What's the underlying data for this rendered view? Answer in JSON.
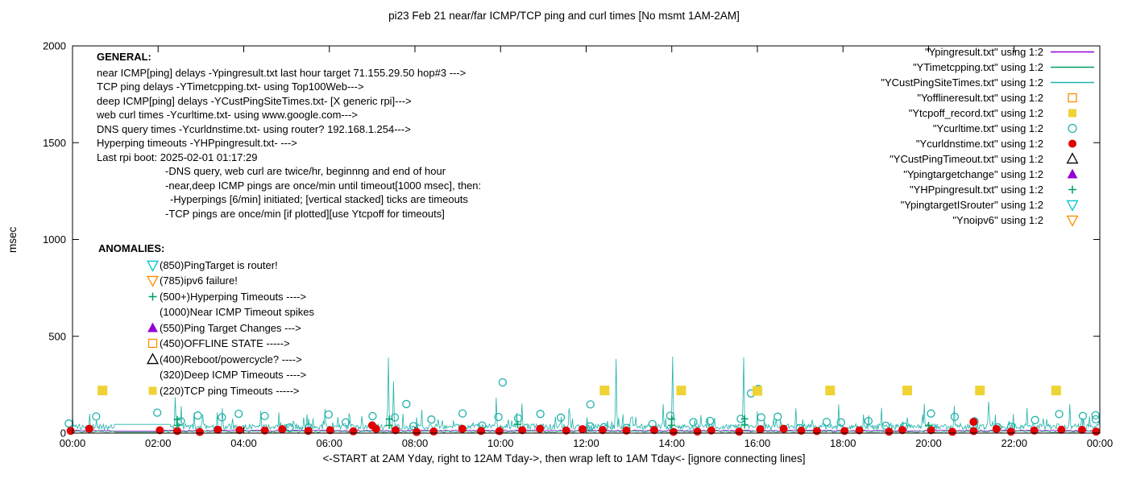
{
  "title": "pi23 Feb 21  near/far ICMP/TCP ping and curl times [No msmt 1AM-2AM]",
  "axes": {
    "ylabel": "msec",
    "xlabel": "<-START at 2AM Yday, right to 12AM Tday->, then wrap left to 1AM Tday<- [ignore connecting lines]"
  },
  "general": {
    "heading": "GENERAL:",
    "lines": [
      {
        "indent": 0,
        "text": "near ICMP[ping] delays -Ypingresult.txt last hour target 71.155.29.50 hop#3 --->"
      },
      {
        "indent": 0,
        "text": "TCP ping delays -YTimetcpping.txt- using Top100Web--->"
      },
      {
        "indent": 0,
        "text": "deep ICMP[ping] delays -YCustPingSiteTimes.txt- [X generic rpi]--->"
      },
      {
        "indent": 0,
        "text": "web curl times -Ycurltime.txt- using www.google.com--->"
      },
      {
        "indent": 0,
        "text": "DNS query times -Ycurldnstime.txt- using router? 192.168.1.254--->"
      },
      {
        "indent": 0,
        "text": "Hyperping timeouts -YHPpingresult.txt- --->"
      },
      {
        "indent": 0,
        "text": "Last rpi boot: 2025-02-01 01:17:29"
      },
      {
        "indent": 1,
        "text": "-DNS query, web curl are twice/hr, beginnng and end of hour"
      },
      {
        "indent": 1,
        "text": "-near,deep ICMP pings are once/min until timeout[1000 msec], then:"
      },
      {
        "indent": 2,
        "text": "-Hyperpings [6/min] initiated; [vertical stacked] ticks are timeouts"
      },
      {
        "indent": 1,
        "text": "-TCP pings are once/min [if plotted][use Ytcpoff for timeouts]"
      }
    ]
  },
  "anomalies": {
    "heading": "ANOMALIES:",
    "items": [
      {
        "marker": "triangle-down-open",
        "color": "#00C5CD",
        "text": "(850)PingTarget is router!"
      },
      {
        "marker": "triangle-down-open",
        "color": "#FF8C00",
        "text": "(785)ipv6 failure!"
      },
      {
        "marker": "plus",
        "color": "#00A060",
        "text": "(500+)Hyperping Timeouts ---->"
      },
      {
        "marker": "none",
        "color": "",
        "text": "(1000)Near ICMP Timeout spikes"
      },
      {
        "marker": "triangle-filled",
        "color": "#9400D3",
        "text": "(550)Ping Target Changes --->"
      },
      {
        "marker": "square-open",
        "color": "#FF8C00",
        "text": "(450)OFFLINE STATE ----->"
      },
      {
        "marker": "triangle-open",
        "color": "#000000",
        "text": "(400)Reboot/powercycle? ---->"
      },
      {
        "marker": "none",
        "color": "",
        "text": "(320)Deep ICMP Timeouts ---->"
      },
      {
        "marker": "square-filled",
        "color": "#EFD334",
        "text": "(220)TCP ping Timeouts ----->"
      }
    ]
  },
  "legend": [
    {
      "marker": "line",
      "color": "#9400D3",
      "label": "\"Ypingresult.txt\" using 1:2"
    },
    {
      "marker": "line",
      "color": "#00A060",
      "label": "\"YTimetcpping.txt\" using 1:2"
    },
    {
      "marker": "line",
      "color": "#20B2AA",
      "label": "\"YCustPingSiteTimes.txt\" using 1:2"
    },
    {
      "marker": "square-open",
      "color": "#FF8C00",
      "label": "\"Yofflineresult.txt\" using 1:2"
    },
    {
      "marker": "square-filled",
      "color": "#EFD334",
      "label": "\"Ytcpoff_record.txt\" using 1:2"
    },
    {
      "marker": "circle-open",
      "color": "#20B2AA",
      "label": "\"Ycurltime.txt\" using 1:2"
    },
    {
      "marker": "circle-filled",
      "color": "#E00000",
      "label": "\"Ycurldnstime.txt\" using 1:2"
    },
    {
      "marker": "triangle-open",
      "color": "#000000",
      "label": "\"YCustPingTimeout.txt\" using 1:2"
    },
    {
      "marker": "triangle-filled",
      "color": "#9400D3",
      "label": "\"Ypingtargetchange\" using 1:2"
    },
    {
      "marker": "plus",
      "color": "#00A060",
      "label": "\"YHPpingresult.txt\" using 1:2"
    },
    {
      "marker": "triangle-down-open",
      "color": "#00C5CD",
      "label": "\"YpingtargetISrouter\" using 1:2"
    },
    {
      "marker": "triangle-down-open",
      "color": "#FF8C00",
      "label": "\"Ynoipv6\" using 1:2"
    }
  ],
  "chart_data": {
    "type": "line",
    "title": "pi23 Feb 21  near/far ICMP/TCP ping and curl times [No msmt 1AM-2AM]",
    "ylabel": "msec",
    "ylim": [
      0,
      2000
    ],
    "yticks": [
      0,
      500,
      1000,
      1500,
      2000
    ],
    "xlim_hours": [
      0,
      24
    ],
    "xtick_labels": [
      "00:00",
      "02:00",
      "04:00",
      "06:00",
      "08:00",
      "10:00",
      "12:00",
      "14:00",
      "16:00",
      "18:00",
      "20:00",
      "22:00",
      "00:00"
    ],
    "noise_seed": 7,
    "no_measurement_gap_hours": [
      1,
      2
    ],
    "series": [
      {
        "name": "near-icmp-ping",
        "style": "line",
        "color": "#9400D3",
        "baseline": 10,
        "noise": 6,
        "sample_step_hours": 0.04,
        "gap_hours": [
          1,
          2
        ],
        "gap_value": 10,
        "spikes": []
      },
      {
        "name": "tcp-ping",
        "style": "line",
        "color": "#00A060",
        "baseline": 4,
        "noise": 8,
        "sample_step_hours": 0.04,
        "gap_hours": [
          1,
          2
        ],
        "gap_value": 5,
        "spikes": []
      },
      {
        "name": "deep-icmp-ping",
        "style": "line",
        "color": "#20B2AA",
        "baseline": 18,
        "noise": 30,
        "spike_chance": 0.08,
        "spike_extra": 70,
        "sample_step_hours": 0.02,
        "gap_hours": [
          1,
          2.3
        ],
        "gap_value": 45,
        "spikes": [
          [
            0.4,
            100
          ],
          [
            2.4,
            185
          ],
          [
            2.55,
            140
          ],
          [
            3.5,
            130
          ],
          [
            4.4,
            115
          ],
          [
            5.9,
            125
          ],
          [
            7.38,
            390
          ],
          [
            7.5,
            268
          ],
          [
            8.15,
            120
          ],
          [
            9.9,
            182
          ],
          [
            10.5,
            152
          ],
          [
            11.6,
            128
          ],
          [
            12.7,
            383
          ],
          [
            13.8,
            150
          ],
          [
            14.02,
            395
          ],
          [
            15.68,
            392
          ],
          [
            16.9,
            128
          ],
          [
            17.9,
            148
          ],
          [
            18.9,
            130
          ],
          [
            19.9,
            152
          ],
          [
            20.6,
            140
          ],
          [
            21.4,
            162
          ],
          [
            22.3,
            130
          ],
          [
            23.3,
            150
          ]
        ]
      },
      {
        "name": "web-curl-times",
        "style": "points",
        "marker": "circle-open",
        "color": "#20B2AA",
        "size": 9,
        "pattern": {
          "interval_hours": 0.5,
          "y_base": 70,
          "y_jitter": 45,
          "x_jitter": 0.12
        },
        "extra_points": [
          [
            10.05,
            262
          ],
          [
            16.02,
            228
          ],
          [
            15.85,
            205
          ],
          [
            7.8,
            150
          ],
          [
            12.1,
            148
          ],
          [
            23.9,
            92
          ]
        ]
      },
      {
        "name": "dns-query-times",
        "style": "points",
        "marker": "circle-filled",
        "color": "#E00000",
        "size": 10,
        "pattern": {
          "interval_hours": 0.5,
          "y_base": 14,
          "y_jitter": 9,
          "x_jitter": 0.12
        },
        "extra_points": [
          [
            21.05,
            58
          ],
          [
            7.0,
            40
          ]
        ]
      },
      {
        "name": "tcp-ping-timeouts",
        "style": "points",
        "marker": "square-filled",
        "color": "#EFD334",
        "size": 12,
        "points": [
          [
            0.7,
            220
          ],
          [
            12.43,
            220
          ],
          [
            14.22,
            220
          ],
          [
            16.0,
            218
          ],
          [
            17.7,
            220
          ],
          [
            19.5,
            220
          ],
          [
            21.2,
            220
          ],
          [
            22.98,
            220
          ]
        ]
      },
      {
        "name": "hyperping-timeouts",
        "style": "points",
        "marker": "plus",
        "color": "#00A060",
        "size": 9,
        "points": [
          [
            2.45,
            40
          ],
          [
            2.45,
            70
          ],
          [
            7.4,
            40
          ],
          [
            7.4,
            72
          ],
          [
            10.4,
            45
          ],
          [
            14.0,
            40
          ],
          [
            14.0,
            72
          ],
          [
            15.7,
            42
          ],
          [
            15.7,
            74
          ],
          [
            20.0,
            40
          ]
        ]
      }
    ]
  }
}
